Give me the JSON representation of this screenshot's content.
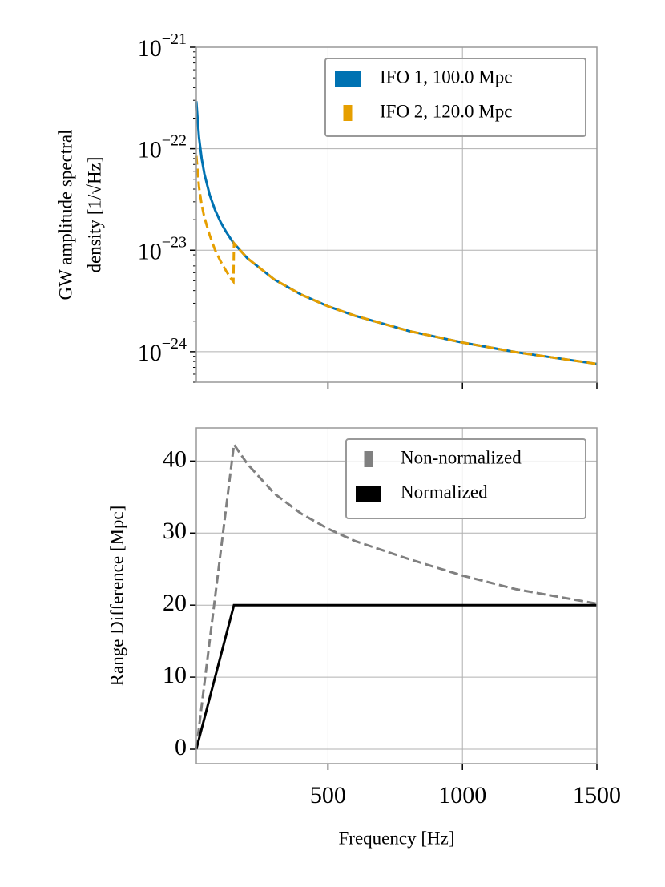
{
  "chart_data": [
    {
      "type": "line",
      "ylabel": [
        "GW amplitude spectral",
        "density [1/√Hz]"
      ],
      "yscale": "log",
      "x": [
        10,
        20,
        30,
        40,
        60,
        80,
        100,
        120,
        140,
        148,
        150,
        200,
        300,
        400,
        500,
        600,
        800,
        1000,
        1200,
        1500
      ],
      "series": [
        {
          "name": "IFO 1,  100.0 Mpc",
          "color": "#0072b2",
          "dashed": false,
          "values": [
            2.94e-22,
            1.29e-22,
            7.97e-23,
            5.66e-23,
            3.49e-23,
            2.48e-23,
            1.9e-23,
            1.53e-23,
            1.27e-23,
            1.19e-23,
            1.17e-23,
            8.34e-24,
            5.15e-24,
            3.65e-24,
            2.8e-24,
            2.26e-24,
            1.6e-24,
            1.23e-24,
            9.88e-25,
            7.57e-25
          ]
        },
        {
          "name": "IFO 2,  120.0 Mpc",
          "color": "#e69f00",
          "dashed": true,
          "values": [
            8.5e-23,
            4.2e-23,
            2.8e-23,
            2.1e-23,
            1.4e-23,
            1e-23,
            7.8e-24,
            6.3e-24,
            5.2e-24,
            4.9e-24,
            1.17e-23,
            8.34e-24,
            5.15e-24,
            3.65e-24,
            2.8e-24,
            2.26e-24,
            1.6e-24,
            1.23e-24,
            9.88e-25,
            7.57e-25
          ]
        }
      ],
      "xlim": [
        10,
        1500
      ],
      "xticks": [
        500,
        1000,
        1500
      ],
      "ylim": [
        5e-25,
        1e-21
      ],
      "yticks": [
        {
          "value": 1e-21,
          "label": "10−21"
        },
        {
          "value": 1e-22,
          "label": "10−22"
        },
        {
          "value": 1e-23,
          "label": "10−23"
        },
        {
          "value": 1e-24,
          "label": "10−24"
        }
      ],
      "grid": true,
      "legend": "upper right"
    },
    {
      "type": "line",
      "xlabel": "Frequency [Hz]",
      "ylabel": [
        "Range Difference [Mpc]"
      ],
      "x": [
        10,
        150,
        200,
        300,
        400,
        500,
        600,
        800,
        1000,
        1200,
        1500
      ],
      "series": [
        {
          "name": "Non-normalized",
          "color": "#808080",
          "dashed": true,
          "values": [
            0,
            42.3,
            39.6,
            35.5,
            32.7,
            30.6,
            28.9,
            26.4,
            24.1,
            22.2,
            20.2
          ]
        },
        {
          "name": "Normalized",
          "color": "#000000",
          "dashed": false,
          "values": [
            0,
            20,
            20,
            20,
            20,
            20,
            20,
            20,
            20,
            20,
            20
          ]
        }
      ],
      "xlim": [
        10,
        1500
      ],
      "xticks": [
        500,
        1000,
        1500
      ],
      "ylim": [
        -2,
        44.6
      ],
      "yticks": [
        0,
        10,
        20,
        30,
        40
      ],
      "grid": true,
      "legend": "upper right"
    }
  ]
}
